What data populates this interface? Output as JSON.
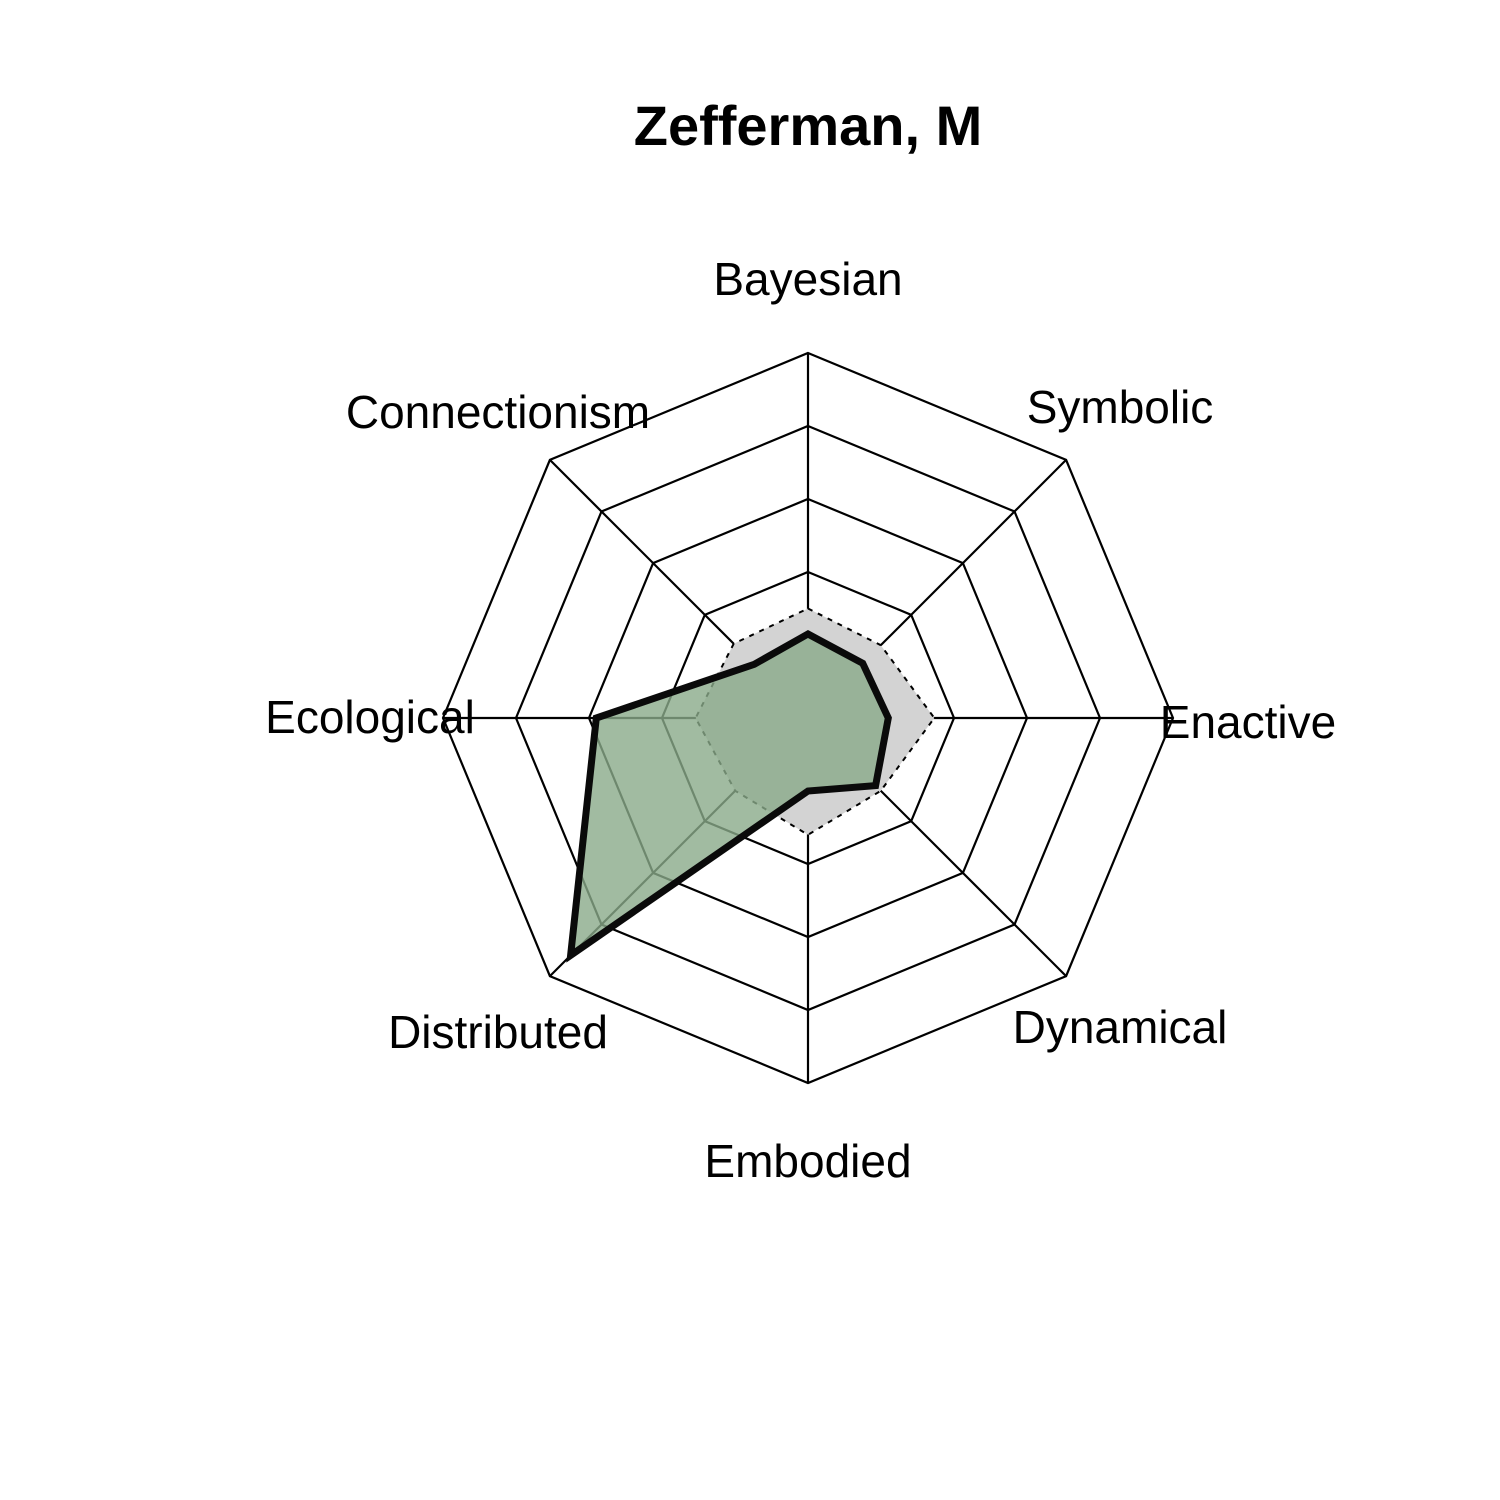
{
  "chart_data": {
    "type": "radar",
    "title": "Zefferman, M",
    "axes": [
      "Bayesian",
      "Symbolic",
      "Enactive",
      "Dynamical",
      "Embodied",
      "Distributed",
      "Ecological",
      "Connectionism"
    ],
    "rings": 5,
    "range": [
      0,
      5
    ],
    "grid": true,
    "series": [
      {
        "values": [
          1.15,
          1.06,
          1.1,
          1.31,
          1.0,
          4.6,
          2.9,
          1.04
        ],
        "fill_color": "#8aaa8a",
        "fill_opacity": 0.8,
        "line_color": "#0a0a0a",
        "line_style": "solid"
      },
      {
        "values": [
          1.5,
          1.41,
          1.73,
          1.41,
          1.6,
          1.41,
          1.54,
          1.44
        ],
        "fill_color": "#d3d3d3",
        "line_color": "#000000",
        "line_style": "dotted"
      }
    ]
  }
}
